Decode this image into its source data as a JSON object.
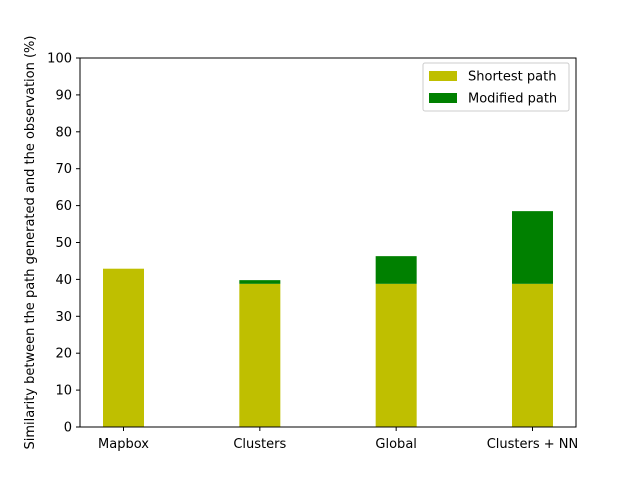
{
  "chart_data": {
    "type": "bar",
    "stacked": true,
    "categories": [
      "Mapbox",
      "Clusters",
      "Global",
      "Clusters + NN"
    ],
    "series": [
      {
        "name": "Shortest path",
        "color": "#bfbf00",
        "values": [
          42.9,
          38.8,
          38.8,
          38.8
        ]
      },
      {
        "name": "Modified path",
        "color": "#008000",
        "values": [
          0.0,
          1.0,
          7.5,
          19.7
        ]
      }
    ],
    "title": "",
    "xlabel": "",
    "ylabel": "Similarity between the path generated and the observation (%)",
    "ylim": [
      0,
      100
    ],
    "yticks": [
      "0",
      "10",
      "20",
      "30",
      "40",
      "50",
      "60",
      "70",
      "80",
      "90",
      "100"
    ],
    "grid": false,
    "legend_position": "top-right"
  }
}
